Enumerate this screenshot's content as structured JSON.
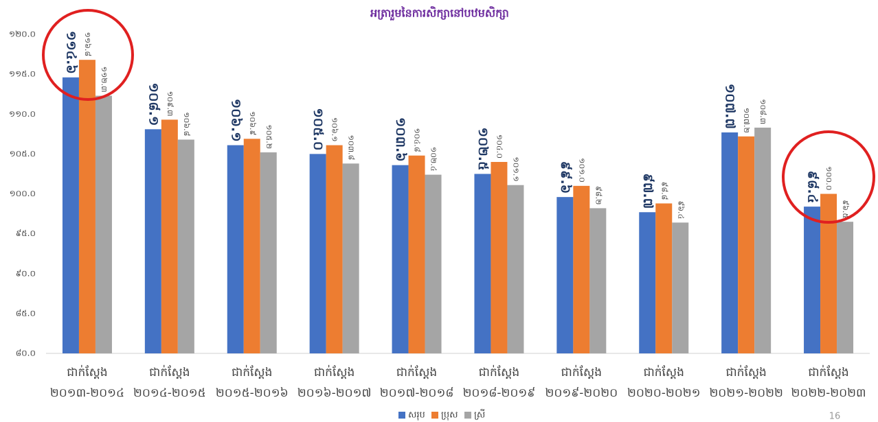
{
  "chart_data": {
    "type": "bar",
    "title": "អត្រារួមនៃការសិក្សានៅបឋមសិក្សា",
    "categories": [
      [
        "ជាក់ស្តែង",
        "២០១៣-២០១៤"
      ],
      [
        "ជាក់ស្តែង",
        "២០១៤-២០១៥"
      ],
      [
        "ជាក់ស្តែង",
        "២០១៥-២០១៦"
      ],
      [
        "ជាក់ស្តែង",
        "២០១៦-២០១៧"
      ],
      [
        "ជាក់ស្តែង",
        "២០១៧-២០១៨"
      ],
      [
        "ជាក់ស្តែង",
        "២០១៨-២០១៩"
      ],
      [
        "ជាក់ស្តែង",
        "២០១៩-២០២០"
      ],
      [
        "ជាក់ស្តែង",
        "២០២០-២០២១"
      ],
      [
        "ជាក់ស្តែង",
        "២០២១-២០២២"
      ],
      [
        "ជាក់ស្តែង",
        "២០២២-២០២៣"
      ]
    ],
    "series": [
      {
        "name": "សរុប",
        "color": "#4472c4",
        "values": [
          114.6,
          108.1,
          106.1,
          105.0,
          103.6,
          102.5,
          99.6,
          97.7,
          107.7,
          98.4
        ],
        "value_labels": [
          "១១៤.៦",
          "១០៨.១",
          "១០៦.១",
          "១០៥.០",
          "១០៣.៦",
          "១០២.៥",
          "៩៩.៦",
          "៩៧.៧",
          "១០៧.៧",
          "៩៨.៤"
        ]
      },
      {
        "name": "ប្រុស",
        "color": "#ed7d31",
        "values": [
          116.8,
          109.3,
          106.9,
          106.1,
          104.8,
          104.0,
          101.0,
          98.8,
          107.2,
          100.0
        ],
        "value_labels": [
          "១១៦.៨",
          "១០៩.៣",
          "១០៦.៩",
          "១០៦.១",
          "១០៤.៨",
          "១០៤.០",
          "១០១.០",
          "៩៨.៨",
          "១០៧.២",
          "១០០.០"
        ]
      },
      {
        "name": "ស្រី",
        "color": "#a5a5a5",
        "values": [
          112.3,
          106.8,
          105.2,
          103.8,
          102.4,
          101.1,
          98.2,
          96.4,
          108.3,
          96.5
        ],
        "value_labels": [
          "១១២.៣",
          "១០៦.៨",
          "១០៥.២",
          "១០៣.៨",
          "១០២.៤",
          "១០១.១",
          "៩៨.២",
          "៩៦.៤",
          "១០៨.៣",
          "៩៦.៥"
        ]
      }
    ],
    "ylim": [
      80,
      120
    ],
    "yticks": [
      {
        "value": 80,
        "label": "៨០.០"
      },
      {
        "value": 85,
        "label": "៨៥.០"
      },
      {
        "value": 90,
        "label": "៩០.០"
      },
      {
        "value": 95,
        "label": "៩៥.០"
      },
      {
        "value": 100,
        "label": "១០០.០"
      },
      {
        "value": 105,
        "label": "១០៥.០"
      },
      {
        "value": 110,
        "label": "១១០.០"
      },
      {
        "value": 115,
        "label": "១១៥.០"
      },
      {
        "value": 120,
        "label": "១២០.០"
      }
    ],
    "grid": false,
    "legend": "bottom",
    "page_number": "16"
  }
}
